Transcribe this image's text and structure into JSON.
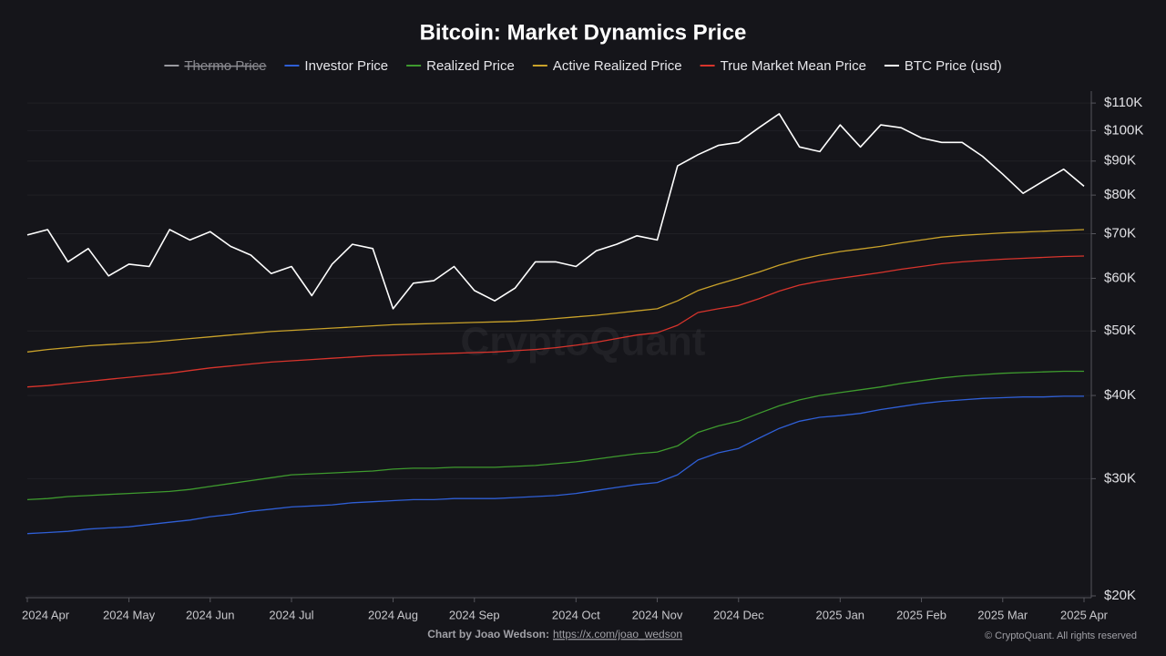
{
  "chart_data": {
    "type": "line",
    "title": "Bitcoin: Market Dynamics Price",
    "log_scale": true,
    "grid": true,
    "watermark": "CryptoQuant",
    "footer_credit": "Chart by Joao Wedson:",
    "footer_link": "https://x.com/joao_wedson",
    "copyright": "© CryptoQuant. All rights reserved",
    "categories": [
      "2024 Apr",
      null,
      null,
      null,
      null,
      "2024 May",
      null,
      null,
      null,
      "2024 Jun",
      null,
      null,
      null,
      "2024 Jul",
      null,
      null,
      null,
      null,
      "2024 Aug",
      null,
      null,
      null,
      "2024 Sep",
      null,
      null,
      null,
      null,
      "2024 Oct",
      null,
      null,
      null,
      "2024 Nov",
      null,
      null,
      null,
      "2024 Dec",
      null,
      null,
      null,
      null,
      "2025 Jan",
      null,
      null,
      null,
      "2025 Feb",
      null,
      null,
      null,
      "2025 Mar",
      null,
      null,
      null,
      "2025 Apr"
    ],
    "ylim": [
      20000,
      115000
    ],
    "yticks": [
      {
        "value": 20000,
        "label": "$20K"
      },
      {
        "value": 30000,
        "label": "$30K"
      },
      {
        "value": 40000,
        "label": "$40K"
      },
      {
        "value": 50000,
        "label": "$50K"
      },
      {
        "value": 60000,
        "label": "$60K"
      },
      {
        "value": 70000,
        "label": "$70K"
      },
      {
        "value": 80000,
        "label": "$80K"
      },
      {
        "value": 90000,
        "label": "$90K"
      },
      {
        "value": 100000,
        "label": "$100K"
      },
      {
        "value": 110000,
        "label": "$110K"
      }
    ],
    "series": [
      {
        "name": "Thermo Price",
        "color": "#9a9aa0",
        "visible": false
      },
      {
        "name": "Investor Price",
        "color": "#2f5fd6",
        "values": [
          24800,
          24900,
          25000,
          25200,
          25300,
          25400,
          25600,
          25800,
          26000,
          26300,
          26500,
          26800,
          27000,
          27200,
          27300,
          27400,
          27600,
          27700,
          27800,
          27900,
          27900,
          28000,
          28000,
          28000,
          28100,
          28200,
          28300,
          28500,
          28800,
          29100,
          29400,
          29600,
          30400,
          32000,
          32800,
          33300,
          34500,
          35700,
          36600,
          37100,
          37300,
          37600,
          38100,
          38500,
          38900,
          39200,
          39400,
          39600,
          39700,
          39800,
          39800,
          39900,
          39900
        ]
      },
      {
        "name": "Realized Price",
        "color": "#3e9a2e",
        "values": [
          27900,
          28000,
          28200,
          28300,
          28400,
          28500,
          28600,
          28700,
          28900,
          29200,
          29500,
          29800,
          30100,
          30400,
          30500,
          30600,
          30700,
          30800,
          31000,
          31100,
          31100,
          31200,
          31200,
          31200,
          31300,
          31400,
          31600,
          31800,
          32100,
          32400,
          32700,
          32900,
          33600,
          35200,
          36000,
          36600,
          37600,
          38600,
          39400,
          40000,
          40400,
          40800,
          41200,
          41700,
          42100,
          42500,
          42800,
          43000,
          43200,
          43300,
          43400,
          43500,
          43500
        ]
      },
      {
        "name": "Active Realized Price",
        "color": "#c9a22a",
        "values": [
          46500,
          46900,
          47200,
          47500,
          47700,
          47900,
          48100,
          48400,
          48700,
          49000,
          49300,
          49600,
          49900,
          50100,
          50300,
          50500,
          50700,
          50900,
          51100,
          51200,
          51300,
          51400,
          51500,
          51600,
          51700,
          51900,
          52200,
          52500,
          52800,
          53200,
          53600,
          54000,
          55500,
          57500,
          58800,
          60000,
          61300,
          62800,
          64000,
          65000,
          65800,
          66400,
          67000,
          67800,
          68500,
          69200,
          69600,
          69900,
          70200,
          70400,
          70600,
          70800,
          71000
        ]
      },
      {
        "name": "True Market Mean Price",
        "color": "#d8342c",
        "values": [
          41200,
          41400,
          41700,
          42000,
          42300,
          42600,
          42900,
          43200,
          43600,
          44000,
          44300,
          44600,
          44900,
          45100,
          45300,
          45500,
          45700,
          45900,
          46000,
          46100,
          46200,
          46300,
          46400,
          46500,
          46700,
          46900,
          47200,
          47600,
          48100,
          48700,
          49300,
          49700,
          51000,
          53300,
          54000,
          54600,
          55900,
          57400,
          58600,
          59400,
          60000,
          60600,
          61200,
          61900,
          62500,
          63100,
          63500,
          63800,
          64100,
          64300,
          64500,
          64700,
          64800
        ]
      },
      {
        "name": "BTC Price (usd)",
        "color": "#ffffff",
        "values": [
          69700,
          71000,
          63500,
          66500,
          60500,
          63000,
          62500,
          71000,
          68500,
          70500,
          67000,
          65000,
          61000,
          62500,
          56500,
          63000,
          67500,
          66500,
          54000,
          59000,
          59500,
          62500,
          57500,
          55500,
          58000,
          63500,
          63500,
          62500,
          66000,
          67500,
          69500,
          68500,
          88500,
          92000,
          95000,
          96000,
          101000,
          106000,
          94500,
          93000,
          102000,
          94500,
          102000,
          101000,
          97500,
          96000,
          96000,
          91500,
          86000,
          80500,
          84000,
          87500,
          82500
        ]
      }
    ]
  }
}
